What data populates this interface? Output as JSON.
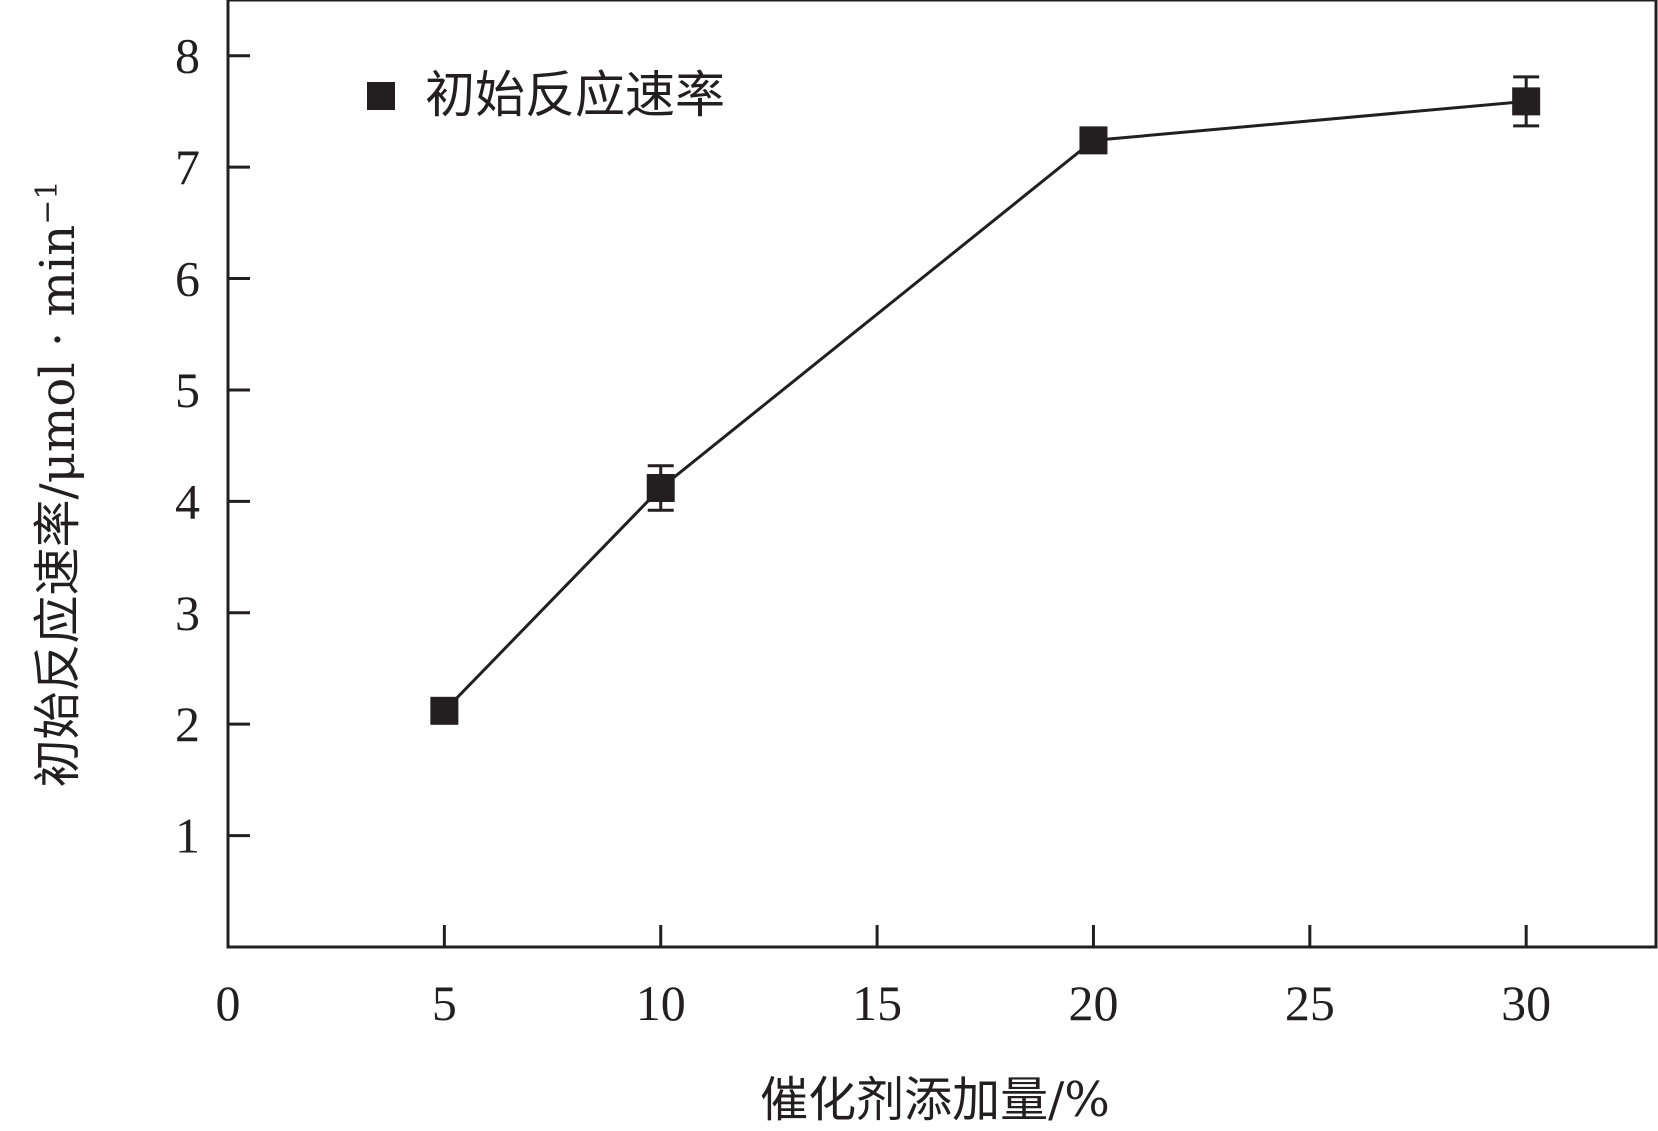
{
  "chart_data": {
    "type": "line",
    "title": "",
    "xlabel": "催化剂添加量/%",
    "ylabel": "初始反应速率/μmol · min",
    "ylabel_superscript": "−1",
    "xlim": [
      0,
      33
    ],
    "ylim": [
      0,
      8.5
    ],
    "x_ticks": [
      0,
      5,
      10,
      15,
      20,
      25,
      30
    ],
    "y_ticks": [
      1,
      2,
      3,
      4,
      5,
      6,
      7,
      8
    ],
    "grid": false,
    "legend_position": "top-left",
    "marker": "square",
    "series": [
      {
        "name": "初始反应速率",
        "color": "#231f20",
        "points": [
          {
            "x": 5,
            "y": 2.12,
            "error": 0.05
          },
          {
            "x": 10,
            "y": 4.12,
            "error": 0.2
          },
          {
            "x": 20,
            "y": 7.24,
            "error": 0.1
          },
          {
            "x": 30,
            "y": 7.59,
            "error": 0.22
          }
        ]
      }
    ]
  }
}
